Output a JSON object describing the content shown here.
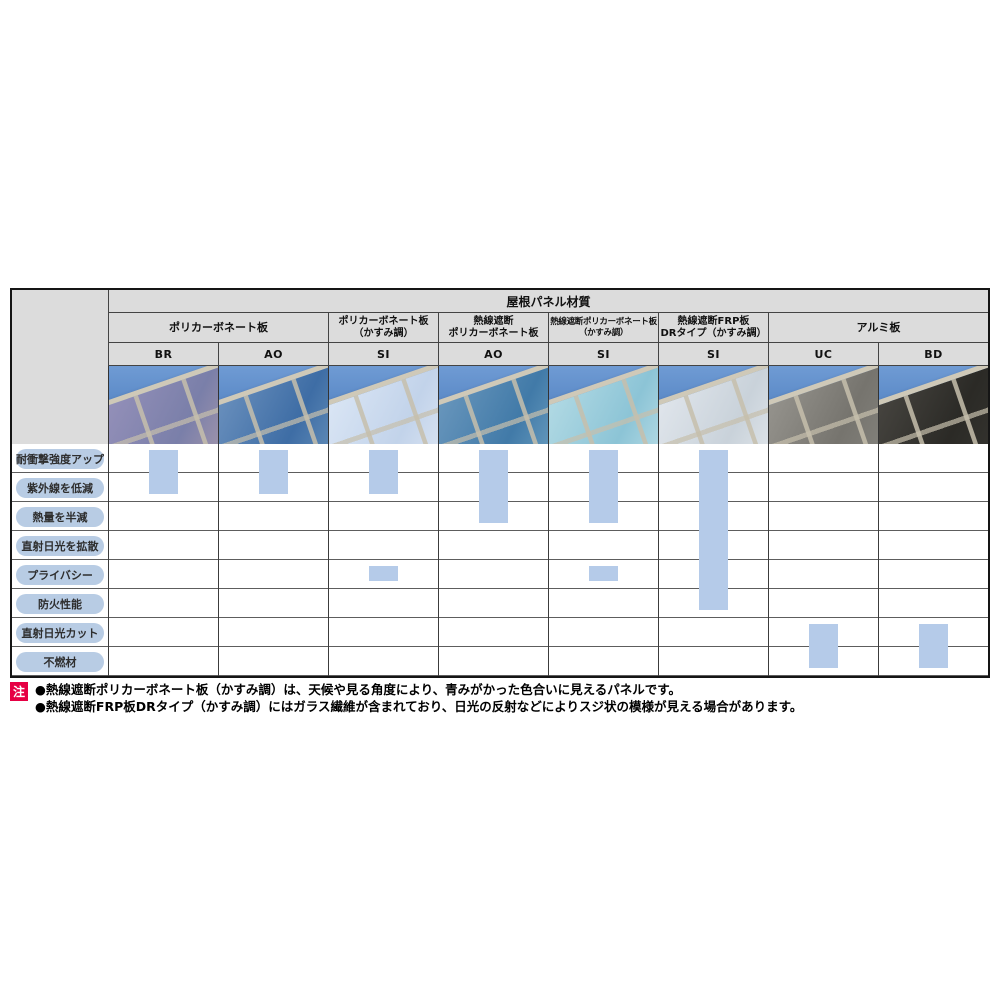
{
  "table": {
    "title": "屋根パネル材質",
    "header_bg": "#dcdcdc",
    "mark_color": "#b5cbe9",
    "pill_color": "#b8cce4",
    "sky_color": "#5585c5",
    "groups": [
      {
        "label": "ポリカーボネート板",
        "span": 2
      },
      {
        "label": "ポリカーボネート板\n（かすみ調）",
        "span": 1
      },
      {
        "label": "熱線遮断\nポリカーボネート板",
        "span": 1
      },
      {
        "label": "熱線遮断ポリカーボネート板\n（かすみ調）",
        "span": 1
      },
      {
        "label": "熱線遮断FRP板\nDRタイプ（かすみ調）",
        "span": 1
      },
      {
        "label": "アルミ板",
        "span": 2
      }
    ],
    "columns": [
      {
        "code": "BR",
        "panel_name": "polycarbonate-brown",
        "panel": [
          "#9792bb",
          "#7a7fa9",
          "#b9a3ae"
        ],
        "marks": [
          {
            "from": 1,
            "to": 2
          }
        ]
      },
      {
        "code": "AO",
        "panel_name": "polycarbonate-blue",
        "panel": [
          "#6f94c0",
          "#3e6da5",
          "#77a0c4"
        ],
        "marks": [
          {
            "from": 1,
            "to": 2
          }
        ]
      },
      {
        "code": "SI",
        "panel_name": "polycarbonate-frost",
        "panel": [
          "#dde8f6",
          "#c2d3ea",
          "#e8eef8"
        ],
        "marks": [
          {
            "from": 1,
            "to": 2
          },
          {
            "from": 5,
            "to": 5
          }
        ]
      },
      {
        "code": "AO",
        "panel_name": "heat-block-polycarbonate-blue",
        "panel": [
          "#6e9abf",
          "#417aa8",
          "#7fb0cc"
        ],
        "marks": [
          {
            "from": 1,
            "to": 3
          }
        ]
      },
      {
        "code": "SI",
        "panel_name": "heat-block-polycarbonate-frost",
        "panel": [
          "#b7dde6",
          "#8cc4d6",
          "#cfe9ee"
        ],
        "marks": [
          {
            "from": 1,
            "to": 3
          },
          {
            "from": 5,
            "to": 5
          }
        ]
      },
      {
        "code": "SI",
        "panel_name": "heat-block-frp-dr",
        "panel": [
          "#e3e8ee",
          "#c9d2da",
          "#eef1f4"
        ],
        "marks": [
          {
            "from": 1,
            "to": 6
          }
        ]
      },
      {
        "code": "UC",
        "panel_name": "aluminum-light",
        "panel": [
          "#9a9892",
          "#76746e",
          "#8b8a84"
        ],
        "marks": [
          {
            "from": 7,
            "to": 8
          }
        ]
      },
      {
        "code": "BD",
        "panel_name": "aluminum-dark",
        "panel": [
          "#4a4843",
          "#2b2a26",
          "#3a3934"
        ],
        "marks": [
          {
            "from": 7,
            "to": 8
          }
        ]
      }
    ],
    "rows": [
      {
        "label": "耐衝撃強度アップ"
      },
      {
        "label": "紫外線を低減"
      },
      {
        "label": "熱量を半減"
      },
      {
        "label": "直射日光を拡散"
      },
      {
        "label": "プライバシー"
      },
      {
        "label": "防火性能"
      },
      {
        "label": "直射日光カット"
      },
      {
        "label": "不燃材"
      }
    ]
  },
  "notes": {
    "marker": "注",
    "marker_color": "#e60044",
    "items": [
      "●熱線遮断ポリカーボネート板（かすみ調）は、天候や見る角度により、青みがかった色合いに見えるパネルです。",
      "●熱線遮断FRP板DRタイプ（かすみ調）にはガラス繊維が含まれており、日光の反射などによりスジ状の模様が見える場合があります。"
    ]
  }
}
